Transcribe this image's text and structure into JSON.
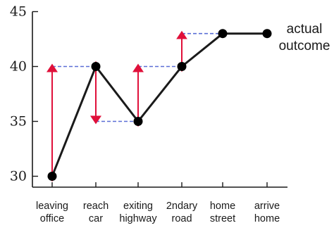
{
  "chart_data": {
    "type": "line",
    "title": "",
    "xlabel": "",
    "ylabel": "",
    "ylim": [
      28,
      45
    ],
    "yticks": [
      30,
      35,
      40,
      45
    ],
    "grid": false,
    "categories": [
      [
        "leaving",
        "office"
      ],
      [
        "reach",
        "car"
      ],
      [
        "exiting",
        "highway"
      ],
      [
        "2ndary",
        "road"
      ],
      [
        "home",
        "street"
      ],
      [
        "arrive",
        "home"
      ]
    ],
    "series": [
      {
        "values": [
          30,
          40,
          35,
          40,
          43,
          43
        ]
      }
    ],
    "prediction_levels": [
      40,
      35,
      40,
      43
    ],
    "annotation": [
      "actual",
      "outcome"
    ],
    "colors": {
      "line": "#1a1a1a",
      "marker": "#000000",
      "arrow": "#e0103a",
      "dashed": "#5b6fd6",
      "axis": "#1a1a1a"
    }
  }
}
